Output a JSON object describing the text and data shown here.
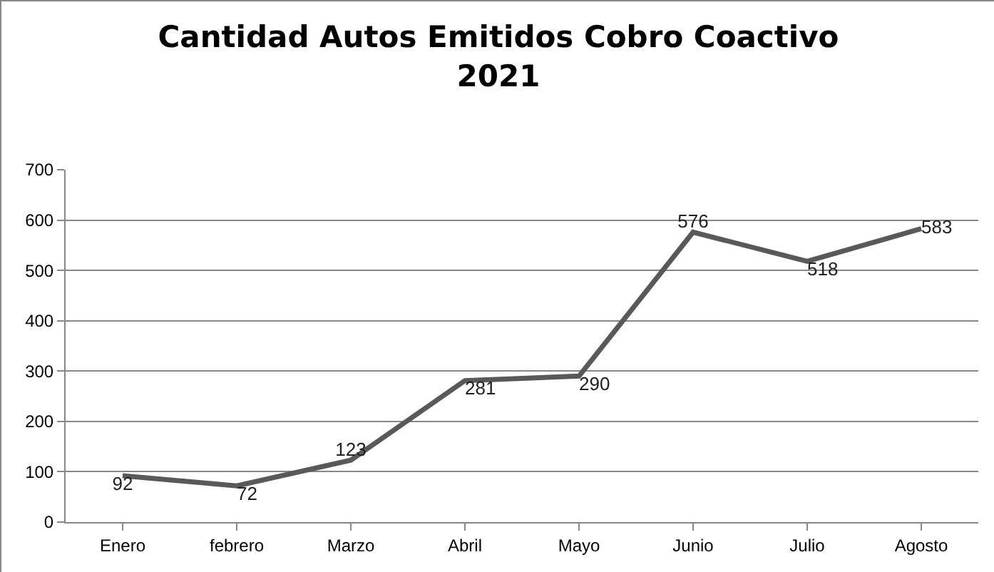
{
  "chart_data": {
    "type": "line",
    "title": "Cantidad Autos Emitidos Cobro Coactivo\n2021",
    "categories": [
      "Enero",
      "febrero",
      "Marzo",
      "Abril",
      "Mayo",
      "Junio",
      "Julio",
      "Agosto"
    ],
    "series": [
      {
        "color": "#595959",
        "values": [
          92,
          72,
          123,
          281,
          290,
          576,
          518,
          583
        ]
      }
    ],
    "ylim": [
      0,
      700
    ],
    "yticks": [
      0,
      100,
      200,
      300,
      400,
      500,
      600,
      700
    ],
    "grid": "y",
    "data_labels": true,
    "marker": "none",
    "line_style": "solid"
  }
}
